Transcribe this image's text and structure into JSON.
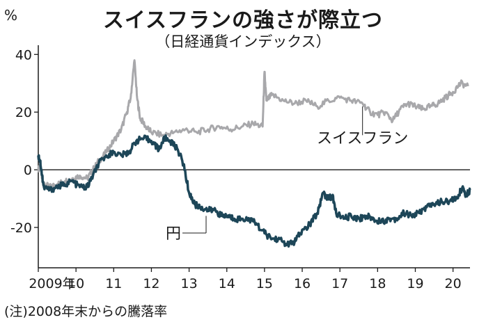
{
  "chart_data": {
    "type": "line",
    "title": "スイスフランの強さが際立つ",
    "subtitle": "（日経通貨インデックス）",
    "unit": "%",
    "note": "(注)2008年末からの騰落率",
    "y_ticks": [
      "40",
      "20",
      "0",
      "-20"
    ],
    "x_ticks": [
      "2009年",
      "10",
      "11",
      "12",
      "13",
      "14",
      "15",
      "16",
      "17",
      "18",
      "19",
      "20"
    ],
    "ylim": [
      -34,
      42
    ],
    "xlim": [
      2009.0,
      2020.45
    ],
    "zero_line": true,
    "series": [
      {
        "name": "スイスフラン",
        "color": "#a8a8ab",
        "points": [
          [
            2009.0,
            0
          ],
          [
            2009.05,
            2
          ],
          [
            2009.1,
            -3
          ],
          [
            2009.15,
            -5
          ],
          [
            2009.3,
            -6
          ],
          [
            2009.5,
            -5
          ],
          [
            2009.7,
            -4
          ],
          [
            2009.9,
            -3
          ],
          [
            2010.1,
            -2
          ],
          [
            2010.3,
            -3
          ],
          [
            2010.45,
            0
          ],
          [
            2010.6,
            3
          ],
          [
            2010.8,
            6
          ],
          [
            2011.0,
            10
          ],
          [
            2011.2,
            14
          ],
          [
            2011.35,
            20
          ],
          [
            2011.45,
            25
          ],
          [
            2011.55,
            38
          ],
          [
            2011.62,
            25
          ],
          [
            2011.7,
            18
          ],
          [
            2011.85,
            15
          ],
          [
            2012.0,
            13
          ],
          [
            2012.3,
            12
          ],
          [
            2012.6,
            13
          ],
          [
            2012.9,
            14
          ],
          [
            2013.2,
            13
          ],
          [
            2013.5,
            14
          ],
          [
            2013.8,
            15
          ],
          [
            2014.1,
            14
          ],
          [
            2014.4,
            15
          ],
          [
            2014.7,
            16
          ],
          [
            2014.95,
            15
          ],
          [
            2015.0,
            34
          ],
          [
            2015.05,
            24
          ],
          [
            2015.2,
            26
          ],
          [
            2015.5,
            24
          ],
          [
            2015.8,
            23
          ],
          [
            2016.1,
            24
          ],
          [
            2016.4,
            22
          ],
          [
            2016.7,
            24
          ],
          [
            2017.0,
            25
          ],
          [
            2017.3,
            24
          ],
          [
            2017.6,
            23
          ],
          [
            2017.8,
            20
          ],
          [
            2018.0,
            19
          ],
          [
            2018.2,
            20
          ],
          [
            2018.4,
            17
          ],
          [
            2018.6,
            21
          ],
          [
            2018.8,
            23
          ],
          [
            2019.0,
            22
          ],
          [
            2019.2,
            21
          ],
          [
            2019.4,
            22
          ],
          [
            2019.6,
            23
          ],
          [
            2019.8,
            25
          ],
          [
            2020.0,
            27
          ],
          [
            2020.2,
            30
          ],
          [
            2020.4,
            29
          ]
        ]
      },
      {
        "name": "円",
        "color": "#1d4658",
        "points": [
          [
            2009.0,
            5
          ],
          [
            2009.05,
            3
          ],
          [
            2009.1,
            -2
          ],
          [
            2009.15,
            -6
          ],
          [
            2009.3,
            -7
          ],
          [
            2009.5,
            -6
          ],
          [
            2009.7,
            -5
          ],
          [
            2009.9,
            -4
          ],
          [
            2010.1,
            -6
          ],
          [
            2010.3,
            -6
          ],
          [
            2010.45,
            -2
          ],
          [
            2010.6,
            2
          ],
          [
            2010.8,
            5
          ],
          [
            2011.0,
            6
          ],
          [
            2011.2,
            5
          ],
          [
            2011.4,
            6
          ],
          [
            2011.6,
            10
          ],
          [
            2011.8,
            11
          ],
          [
            2012.0,
            10
          ],
          [
            2012.2,
            7
          ],
          [
            2012.35,
            11
          ],
          [
            2012.5,
            10
          ],
          [
            2012.7,
            7
          ],
          [
            2012.85,
            2
          ],
          [
            2013.0,
            -8
          ],
          [
            2013.15,
            -12
          ],
          [
            2013.3,
            -13
          ],
          [
            2013.5,
            -14
          ],
          [
            2013.7,
            -14
          ],
          [
            2013.85,
            -16
          ],
          [
            2014.0,
            -16
          ],
          [
            2014.2,
            -17
          ],
          [
            2014.4,
            -17
          ],
          [
            2014.6,
            -17
          ],
          [
            2014.8,
            -19
          ],
          [
            2015.0,
            -22
          ],
          [
            2015.2,
            -24
          ],
          [
            2015.4,
            -24
          ],
          [
            2015.6,
            -26
          ],
          [
            2015.8,
            -25
          ],
          [
            2015.95,
            -22
          ],
          [
            2016.2,
            -19
          ],
          [
            2016.4,
            -15
          ],
          [
            2016.55,
            -8
          ],
          [
            2016.7,
            -10
          ],
          [
            2016.8,
            -9
          ],
          [
            2016.9,
            -15
          ],
          [
            2017.1,
            -17
          ],
          [
            2017.3,
            -16
          ],
          [
            2017.5,
            -17
          ],
          [
            2017.7,
            -16
          ],
          [
            2017.9,
            -17
          ],
          [
            2018.1,
            -18
          ],
          [
            2018.3,
            -17
          ],
          [
            2018.5,
            -17
          ],
          [
            2018.7,
            -15
          ],
          [
            2018.9,
            -16
          ],
          [
            2019.1,
            -15
          ],
          [
            2019.3,
            -13
          ],
          [
            2019.5,
            -12
          ],
          [
            2019.7,
            -11
          ],
          [
            2019.9,
            -11
          ],
          [
            2020.1,
            -10
          ],
          [
            2020.25,
            -6
          ],
          [
            2020.35,
            -9
          ],
          [
            2020.45,
            -7
          ]
        ]
      }
    ]
  }
}
